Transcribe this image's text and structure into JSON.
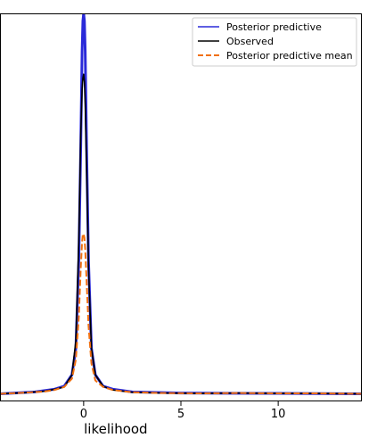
{
  "chart_data": {
    "type": "line",
    "title": "",
    "xlabel": "likelihood",
    "ylabel": "",
    "xlim": [
      -4.3,
      14.3
    ],
    "ylim": [
      -0.02,
      1.0
    ],
    "x_ticks": [
      0,
      5,
      10
    ],
    "x_tick_labels": [
      "0",
      "5",
      "10"
    ],
    "y_ticks": [],
    "grid": false,
    "legend_position": "top-right",
    "legend": [
      "Posterior predictive",
      "Observed",
      "Posterior predictive mean"
    ],
    "colors": {
      "posterior_predictive": "#2a2ad9",
      "observed": "#000000",
      "posterior_predictive_mean": "#f07010"
    },
    "series": [
      {
        "name": "Posterior predictive",
        "style": "solid",
        "color": "#2a2ad9",
        "x": [
          -4.3,
          -2.5,
          -1.5,
          -1.0,
          -0.6,
          -0.4,
          -0.25,
          -0.15,
          -0.08,
          -0.04,
          0.0,
          0.04,
          0.08,
          0.15,
          0.25,
          0.4,
          0.6,
          1.0,
          1.5,
          2.5,
          5.0,
          10.0,
          14.3
        ],
        "y": [
          0.0,
          0.005,
          0.012,
          0.02,
          0.05,
          0.12,
          0.35,
          0.65,
          0.9,
          0.98,
          1.0,
          0.98,
          0.9,
          0.65,
          0.35,
          0.12,
          0.05,
          0.02,
          0.012,
          0.005,
          0.002,
          0.001,
          0.0
        ]
      },
      {
        "name": "Observed",
        "style": "solid",
        "color": "#000000",
        "x": [
          -4.3,
          -3.0,
          -2.0,
          -1.5,
          -1.0,
          -0.6,
          -0.4,
          -0.25,
          -0.15,
          -0.08,
          -0.04,
          0.0,
          0.04,
          0.08,
          0.15,
          0.25,
          0.4,
          0.6,
          1.0,
          1.5,
          2.5,
          4.0,
          6.0,
          8.0,
          10.0,
          12.0,
          14.3
        ],
        "y": [
          0.0,
          0.003,
          0.007,
          0.012,
          0.018,
          0.05,
          0.14,
          0.4,
          0.68,
          0.8,
          0.83,
          0.84,
          0.82,
          0.76,
          0.6,
          0.33,
          0.12,
          0.05,
          0.02,
          0.01,
          0.004,
          0.002,
          0.001,
          0.002,
          0.001,
          0.001,
          0.0
        ]
      },
      {
        "name": "Posterior predictive mean",
        "style": "dashed",
        "color": "#f07010",
        "x": [
          -4.3,
          -3.0,
          -2.0,
          -1.5,
          -1.0,
          -0.6,
          -0.4,
          -0.25,
          -0.15,
          -0.08,
          -0.04,
          0.0,
          0.04,
          0.08,
          0.15,
          0.25,
          0.4,
          0.6,
          1.0,
          1.5,
          2.5,
          4.0,
          6.0,
          8.0,
          10.0,
          12.0,
          14.3
        ],
        "y": [
          0.0,
          0.003,
          0.006,
          0.01,
          0.018,
          0.04,
          0.09,
          0.2,
          0.33,
          0.4,
          0.42,
          0.42,
          0.41,
          0.38,
          0.3,
          0.18,
          0.08,
          0.035,
          0.018,
          0.01,
          0.004,
          0.002,
          0.001,
          0.002,
          0.001,
          0.001,
          0.0
        ]
      }
    ]
  }
}
